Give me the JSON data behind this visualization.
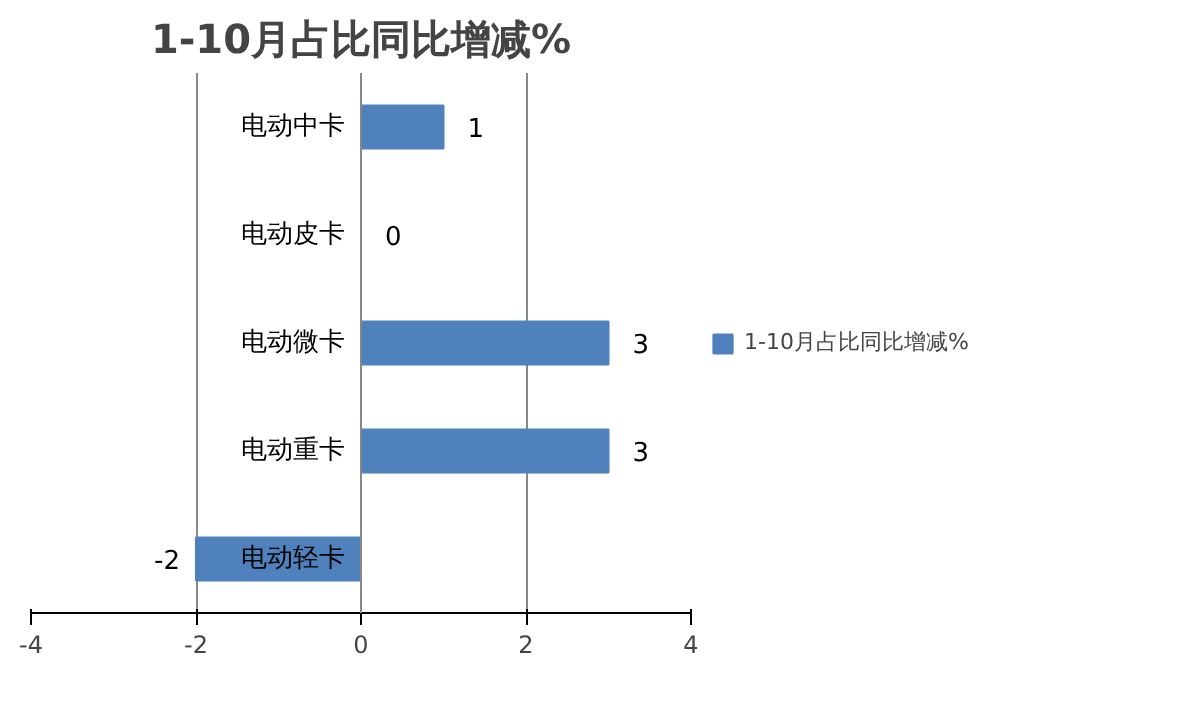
{
  "chart_data": {
    "type": "bar",
    "orientation": "horizontal",
    "title": "1-10月占比同比增减%",
    "categories": [
      "电动中卡",
      "电动皮卡",
      "电动微卡",
      "电动重卡",
      "电动轻卡"
    ],
    "series": [
      {
        "name": "1-10月占比同比增减%",
        "color": "#4f81bd",
        "values": [
          1,
          0,
          3,
          3,
          -2
        ]
      }
    ],
    "xlim": [
      -4,
      4
    ],
    "xticks": [
      -4,
      -2,
      0,
      2,
      4
    ],
    "grid": "x",
    "legend": "right",
    "data_labels": true
  }
}
